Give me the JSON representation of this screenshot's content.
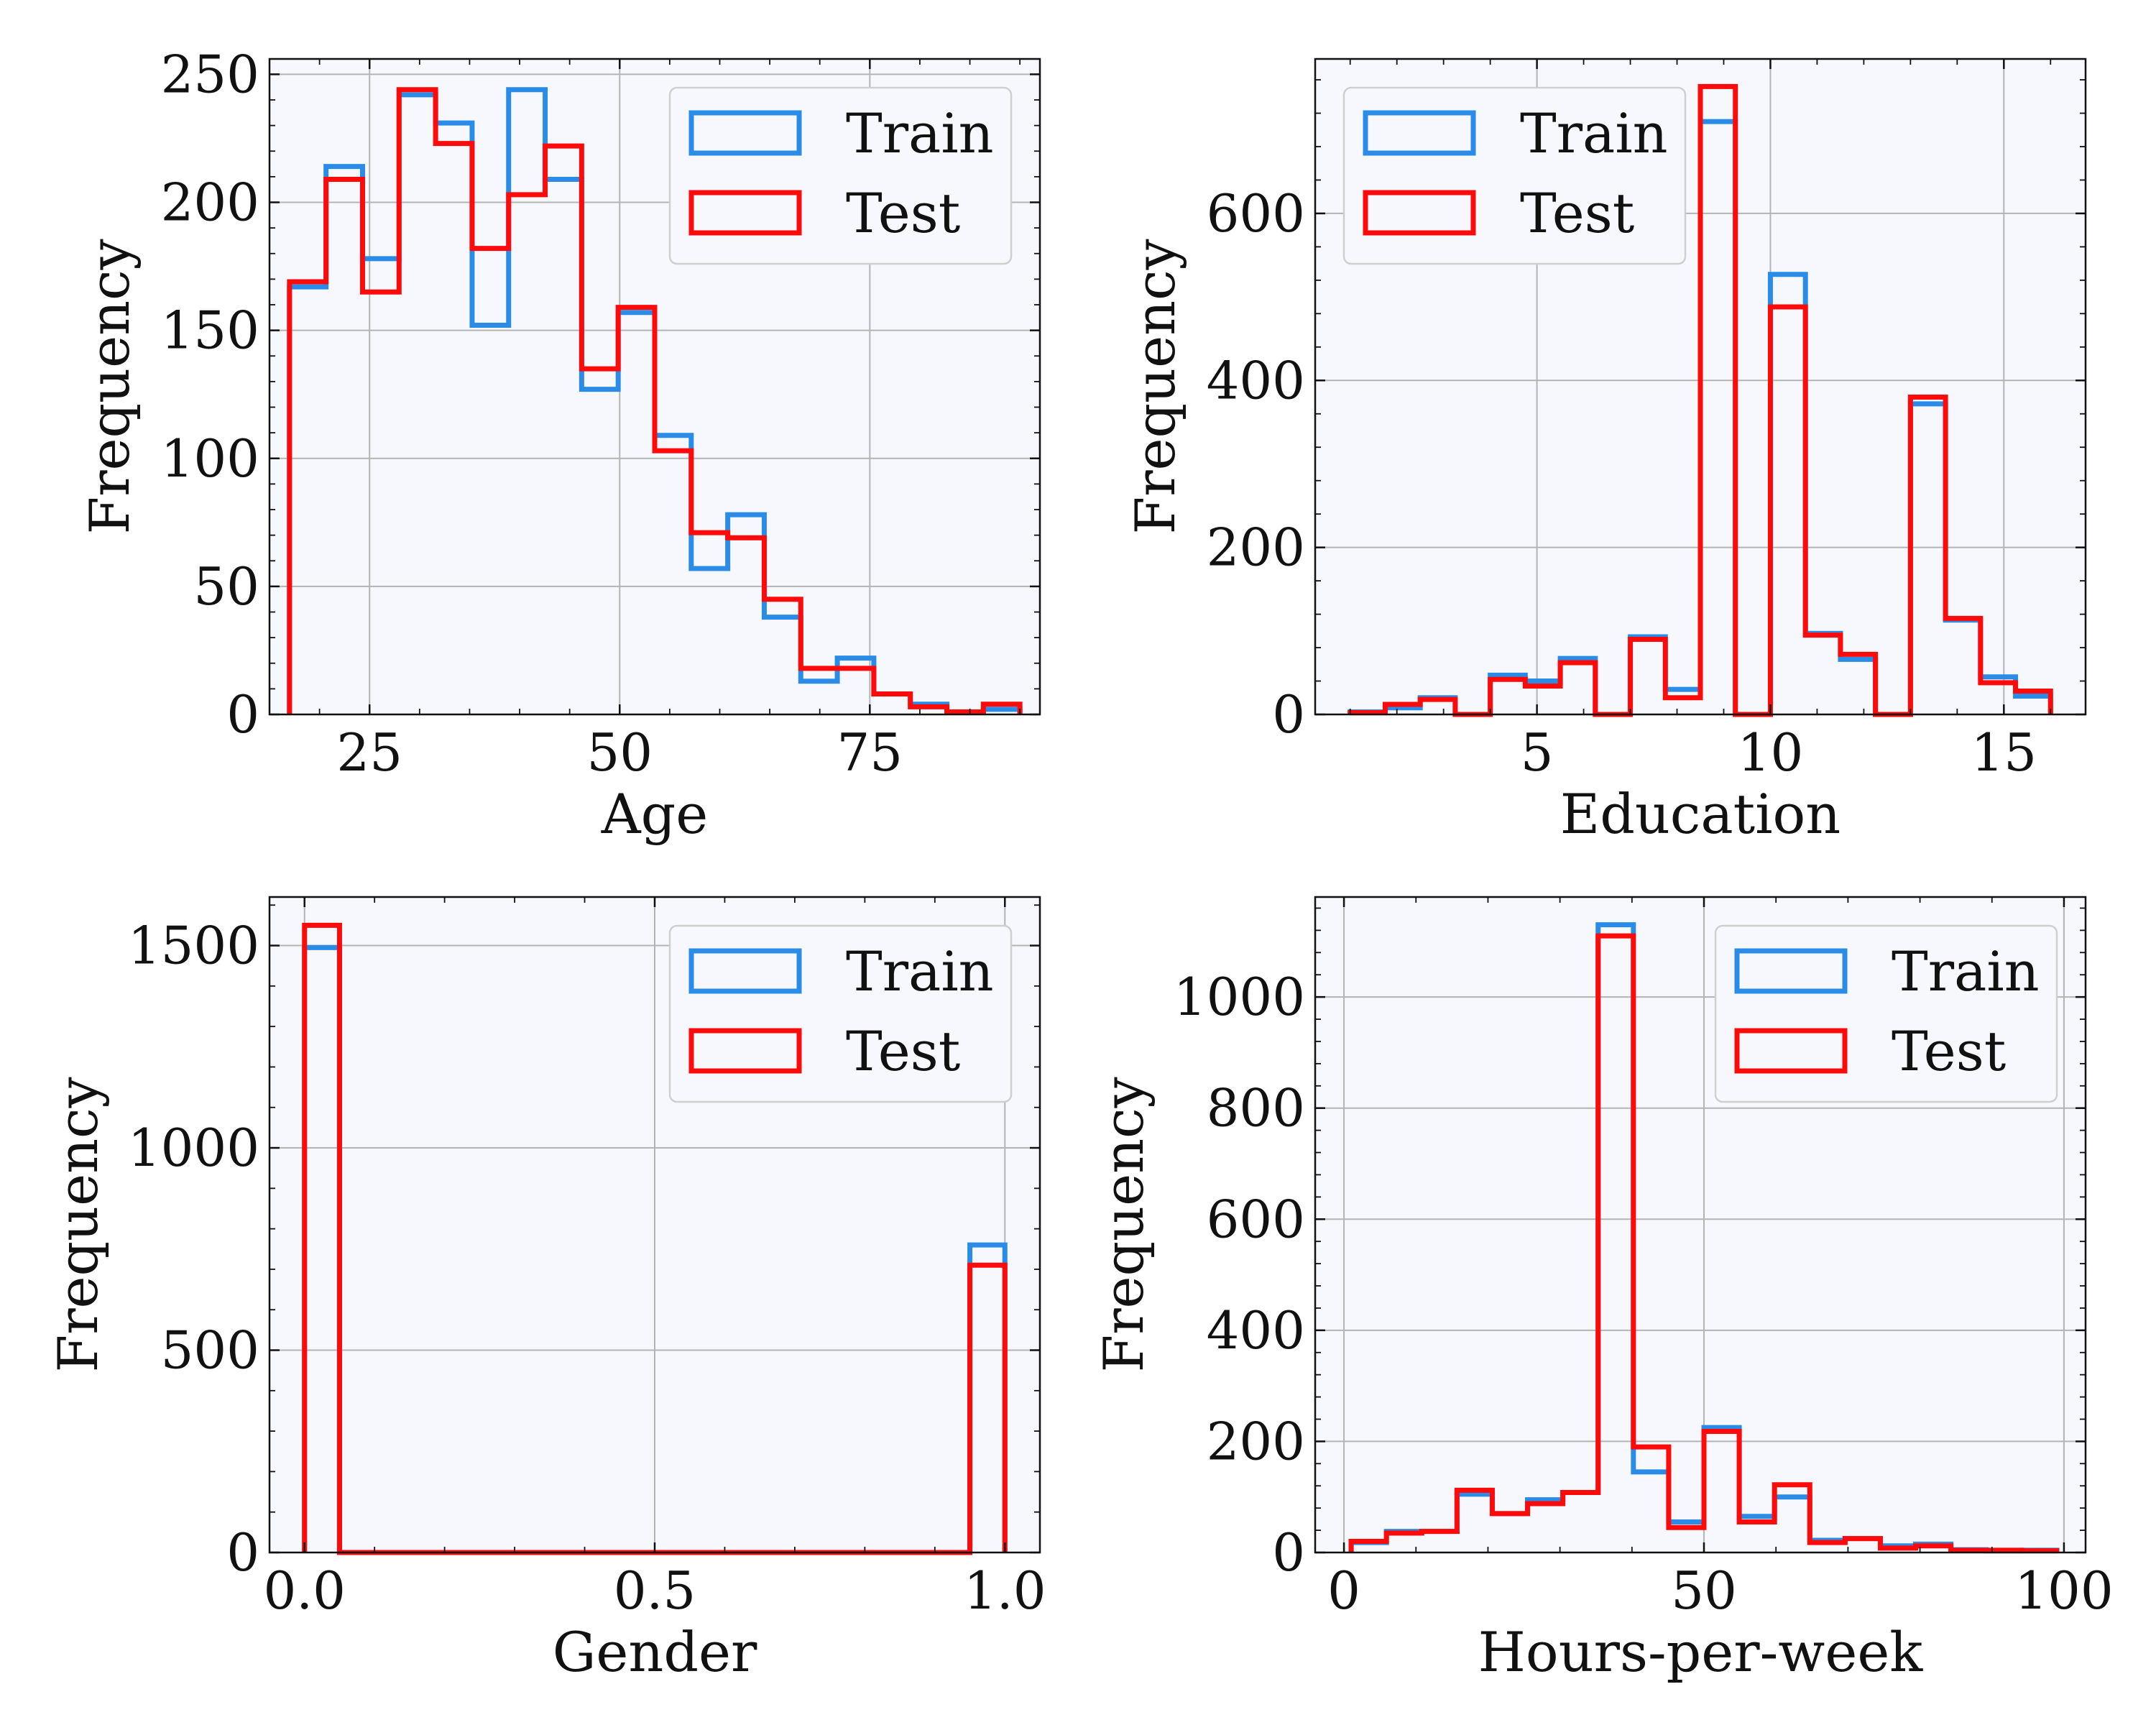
{
  "colors": {
    "train": "#2b8ce8",
    "test": "#ff0a0a",
    "plot_bg": "#f6f8fd",
    "grid": "#b4b4b4",
    "axis": "#111111"
  },
  "legend": {
    "train_label": "Train",
    "test_label": "Test"
  },
  "chart_data": [
    {
      "type": "histogram",
      "title": "",
      "xlabel": "Age",
      "ylabel": "Frequency",
      "xlim": [
        15,
        92
      ],
      "ylim": [
        0,
        256
      ],
      "xticks": [
        25,
        50,
        75
      ],
      "xtick_labels": [
        "25",
        "50",
        "75"
      ],
      "yticks": [
        0,
        50,
        100,
        150,
        200,
        250
      ],
      "ytick_labels": [
        "0",
        "50",
        "100",
        "150",
        "200",
        "250"
      ],
      "grid": true,
      "legend_position": "top-right",
      "bins": [
        17.0,
        20.65,
        24.3,
        27.95,
        31.6,
        35.25,
        38.9,
        42.55,
        46.2,
        49.85,
        53.5,
        57.15,
        60.8,
        64.45,
        68.1,
        71.75,
        75.4,
        79.05,
        82.7,
        86.35,
        90.0
      ],
      "series": [
        {
          "name": "Train",
          "values": [
            167,
            214,
            178,
            242,
            231,
            152,
            244,
            209,
            127,
            157,
            109,
            57,
            78,
            38,
            13,
            22,
            8,
            4,
            1,
            2
          ]
        },
        {
          "name": "Test",
          "values": [
            169,
            209,
            165,
            244,
            223,
            182,
            203,
            222,
            135,
            159,
            103,
            71,
            69,
            45,
            18,
            18,
            8,
            3,
            1,
            4
          ]
        }
      ]
    },
    {
      "type": "histogram",
      "title": "",
      "xlabel": "Education",
      "ylabel": "Frequency",
      "xlim": [
        0.25,
        16.75
      ],
      "ylim": [
        0,
        785
      ],
      "xticks": [
        5,
        10,
        15
      ],
      "xtick_labels": [
        "5",
        "10",
        "15"
      ],
      "yticks": [
        0,
        200,
        400,
        600
      ],
      "ytick_labels": [
        "0",
        "200",
        "400",
        "600"
      ],
      "grid": true,
      "legend_position": "top-left",
      "bins": [
        1.0,
        1.75,
        2.5,
        3.25,
        4.0,
        4.75,
        5.5,
        6.25,
        7.0,
        7.75,
        8.5,
        9.25,
        10.0,
        10.75,
        11.5,
        12.25,
        13.0,
        13.75,
        14.5,
        15.25,
        16.0
      ],
      "series": [
        {
          "name": "Train",
          "values": [
            3,
            8,
            20,
            0,
            47,
            40,
            67,
            0,
            93,
            30,
            710,
            0,
            527,
            97,
            66,
            0,
            372,
            113,
            45,
            22
          ]
        },
        {
          "name": "Test",
          "values": [
            2,
            12,
            18,
            0,
            42,
            34,
            62,
            0,
            90,
            20,
            752,
            0,
            488,
            95,
            72,
            0,
            380,
            115,
            38,
            28
          ]
        }
      ]
    },
    {
      "type": "histogram",
      "title": "",
      "xlabel": "Gender",
      "ylabel": "Frequency",
      "xlim": [
        -0.05,
        1.05
      ],
      "ylim": [
        0,
        1620
      ],
      "xticks": [
        0,
        0.5,
        1
      ],
      "xtick_labels": [
        "0.0",
        "0.5",
        "1.0"
      ],
      "yticks": [
        0,
        500,
        1000,
        1500
      ],
      "ytick_labels": [
        "0",
        "500",
        "1000",
        "1500"
      ],
      "grid": true,
      "legend_position": "top-right",
      "bins": [
        0.0,
        0.05,
        0.1,
        0.15,
        0.2,
        0.25,
        0.3,
        0.35,
        0.4,
        0.45,
        0.5,
        0.55,
        0.6,
        0.65,
        0.7,
        0.75,
        0.8,
        0.85,
        0.9,
        0.95,
        1.0
      ],
      "series": [
        {
          "name": "Train",
          "values": [
            1495,
            0,
            0,
            0,
            0,
            0,
            0,
            0,
            0,
            0,
            0,
            0,
            0,
            0,
            0,
            0,
            0,
            0,
            0,
            760
          ]
        },
        {
          "name": "Test",
          "values": [
            1550,
            0,
            0,
            0,
            0,
            0,
            0,
            0,
            0,
            0,
            0,
            0,
            0,
            0,
            0,
            0,
            0,
            0,
            0,
            710
          ]
        }
      ]
    },
    {
      "type": "histogram",
      "title": "",
      "xlabel": "Hours-per-week",
      "ylabel": "Frequency",
      "xlim": [
        -4,
        103
      ],
      "ylim": [
        0,
        1180
      ],
      "xticks": [
        0,
        50,
        100
      ],
      "xtick_labels": [
        "0",
        "50",
        "100"
      ],
      "yticks": [
        0,
        200,
        400,
        600,
        800,
        1000
      ],
      "ytick_labels": [
        "0",
        "200",
        "400",
        "600",
        "800",
        "1000"
      ],
      "grid": true,
      "legend_position": "top-right",
      "bins": [
        1.0,
        5.9,
        10.8,
        15.7,
        20.6,
        25.5,
        30.4,
        35.3,
        40.2,
        45.1,
        50.0,
        54.9,
        59.8,
        64.7,
        69.6,
        74.5,
        79.4,
        84.3,
        89.2,
        94.1,
        99.0
      ],
      "series": [
        {
          "name": "Train",
          "values": [
            18,
            38,
            38,
            105,
            70,
            95,
            108,
            1130,
            145,
            55,
            225,
            65,
            100,
            22,
            25,
            12,
            15,
            5,
            3,
            4
          ]
        },
        {
          "name": "Test",
          "values": [
            20,
            35,
            38,
            112,
            70,
            88,
            108,
            1110,
            190,
            45,
            218,
            55,
            122,
            18,
            25,
            8,
            12,
            4,
            4,
            3
          ]
        }
      ]
    }
  ]
}
